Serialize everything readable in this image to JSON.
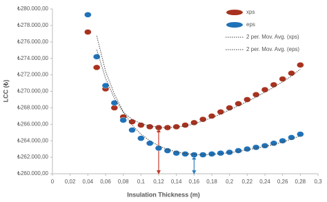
{
  "chart_data": {
    "type": "scatter",
    "x_label": "Insulation Thickness (m)",
    "y_label": "LCC (₺)",
    "xlim": [
      0,
      0.3
    ],
    "ylim": [
      260000,
      280000
    ],
    "xticks": [
      0,
      {
        "value": 0.02,
        "label": "0,02"
      },
      {
        "value": 0.04,
        "label": "0,04"
      },
      {
        "value": 0.06,
        "label": "0,06"
      },
      {
        "value": 0.08,
        "label": "0,08"
      },
      {
        "value": 0.1,
        "label": "0,1"
      },
      {
        "value": 0.12,
        "label": "0,12"
      },
      {
        "value": 0.14,
        "label": "0,14"
      },
      {
        "value": 0.16,
        "label": "0,16"
      },
      {
        "value": 0.18,
        "label": "0,18"
      },
      {
        "value": 0.2,
        "label": "0,2"
      },
      {
        "value": 0.22,
        "label": "0,22"
      },
      {
        "value": 0.24,
        "label": "0,24"
      },
      {
        "value": 0.26,
        "label": "0,26"
      },
      {
        "value": 0.28,
        "label": "0,28"
      },
      {
        "value": 0.3,
        "label": "0,3"
      }
    ],
    "yticks": [
      {
        "value": 260000,
        "label": "₺260.000,00"
      },
      {
        "value": 262000,
        "label": "₺262.000,00"
      },
      {
        "value": 264000,
        "label": "₺264.000,00"
      },
      {
        "value": 266000,
        "label": "₺266.000,00"
      },
      {
        "value": 268000,
        "label": "₺268.000,00"
      },
      {
        "value": 270000,
        "label": "₺270.000,00"
      },
      {
        "value": 272000,
        "label": "₺272.000,00"
      },
      {
        "value": 274000,
        "label": "₺274.000,00"
      },
      {
        "value": 276000,
        "label": "₺276.000,00"
      },
      {
        "value": 278000,
        "label": "₺278.000,00"
      },
      {
        "value": 280000,
        "label": "₺280.000,00"
      }
    ],
    "grid": false,
    "legend": "top-right",
    "series": [
      {
        "name": "xps",
        "style": "marker",
        "color": "#a8321f",
        "x": [
          0.04,
          0.05,
          0.06,
          0.07,
          0.08,
          0.09,
          0.1,
          0.11,
          0.12,
          0.13,
          0.14,
          0.15,
          0.16,
          0.17,
          0.18,
          0.19,
          0.2,
          0.21,
          0.22,
          0.23,
          0.24,
          0.25,
          0.26,
          0.27,
          0.28
        ],
        "values": [
          277200,
          272900,
          270300,
          268000,
          266900,
          266300,
          265900,
          265700,
          265600,
          265600,
          265700,
          265900,
          266200,
          266600,
          267000,
          267500,
          268000,
          268500,
          269000,
          269600,
          270200,
          270800,
          271500,
          272200,
          273200
        ]
      },
      {
        "name": "eps",
        "style": "marker",
        "color": "#1f72b8",
        "x": [
          0.04,
          0.05,
          0.06,
          0.07,
          0.08,
          0.09,
          0.1,
          0.11,
          0.12,
          0.13,
          0.14,
          0.15,
          0.16,
          0.17,
          0.18,
          0.19,
          0.2,
          0.21,
          0.22,
          0.23,
          0.24,
          0.25,
          0.26,
          0.27,
          0.28
        ],
        "values": [
          279300,
          274200,
          270700,
          268600,
          266500,
          265300,
          264300,
          263700,
          263100,
          262800,
          262500,
          262400,
          262300,
          262300,
          262400,
          262500,
          262600,
          262800,
          263000,
          263200,
          263400,
          263700,
          264000,
          264400,
          264800
        ]
      },
      {
        "name": "2 per. Mov. Avg. (xps)",
        "style": "dotted",
        "color": "#404040",
        "x": [
          0.05,
          0.06,
          0.07,
          0.08,
          0.09,
          0.1,
          0.11,
          0.12,
          0.13,
          0.14,
          0.15,
          0.16,
          0.17,
          0.18,
          0.19,
          0.2,
          0.21,
          0.22,
          0.23,
          0.24,
          0.25,
          0.26,
          0.27,
          0.28
        ],
        "values": [
          275050,
          271600,
          269150,
          267450,
          266600,
          266100,
          265800,
          265650,
          265600,
          265650,
          265800,
          266050,
          266400,
          266800,
          267250,
          267750,
          268250,
          268750,
          269300,
          269900,
          270500,
          271150,
          271850,
          272700
        ]
      },
      {
        "name": "2 per. Mov. Avg. (eps)",
        "style": "dotted",
        "color": "#404040",
        "x": [
          0.05,
          0.06,
          0.07,
          0.08,
          0.09,
          0.1,
          0.11,
          0.12,
          0.13,
          0.14,
          0.15,
          0.16,
          0.17,
          0.18,
          0.19,
          0.2,
          0.21,
          0.22,
          0.23,
          0.24,
          0.25,
          0.26,
          0.27,
          0.28
        ],
        "values": [
          276750,
          272450,
          269650,
          267550,
          265900,
          264800,
          264000,
          263400,
          262950,
          262650,
          262450,
          262350,
          262300,
          262350,
          262450,
          262550,
          262700,
          262900,
          263100,
          263300,
          263550,
          263850,
          264200,
          264600
        ]
      }
    ],
    "annotations": [
      {
        "x": 0.12,
        "y": 265600,
        "color": "#c0392b"
      },
      {
        "x": 0.16,
        "y": 262300,
        "color": "#2e7fc1"
      }
    ]
  }
}
